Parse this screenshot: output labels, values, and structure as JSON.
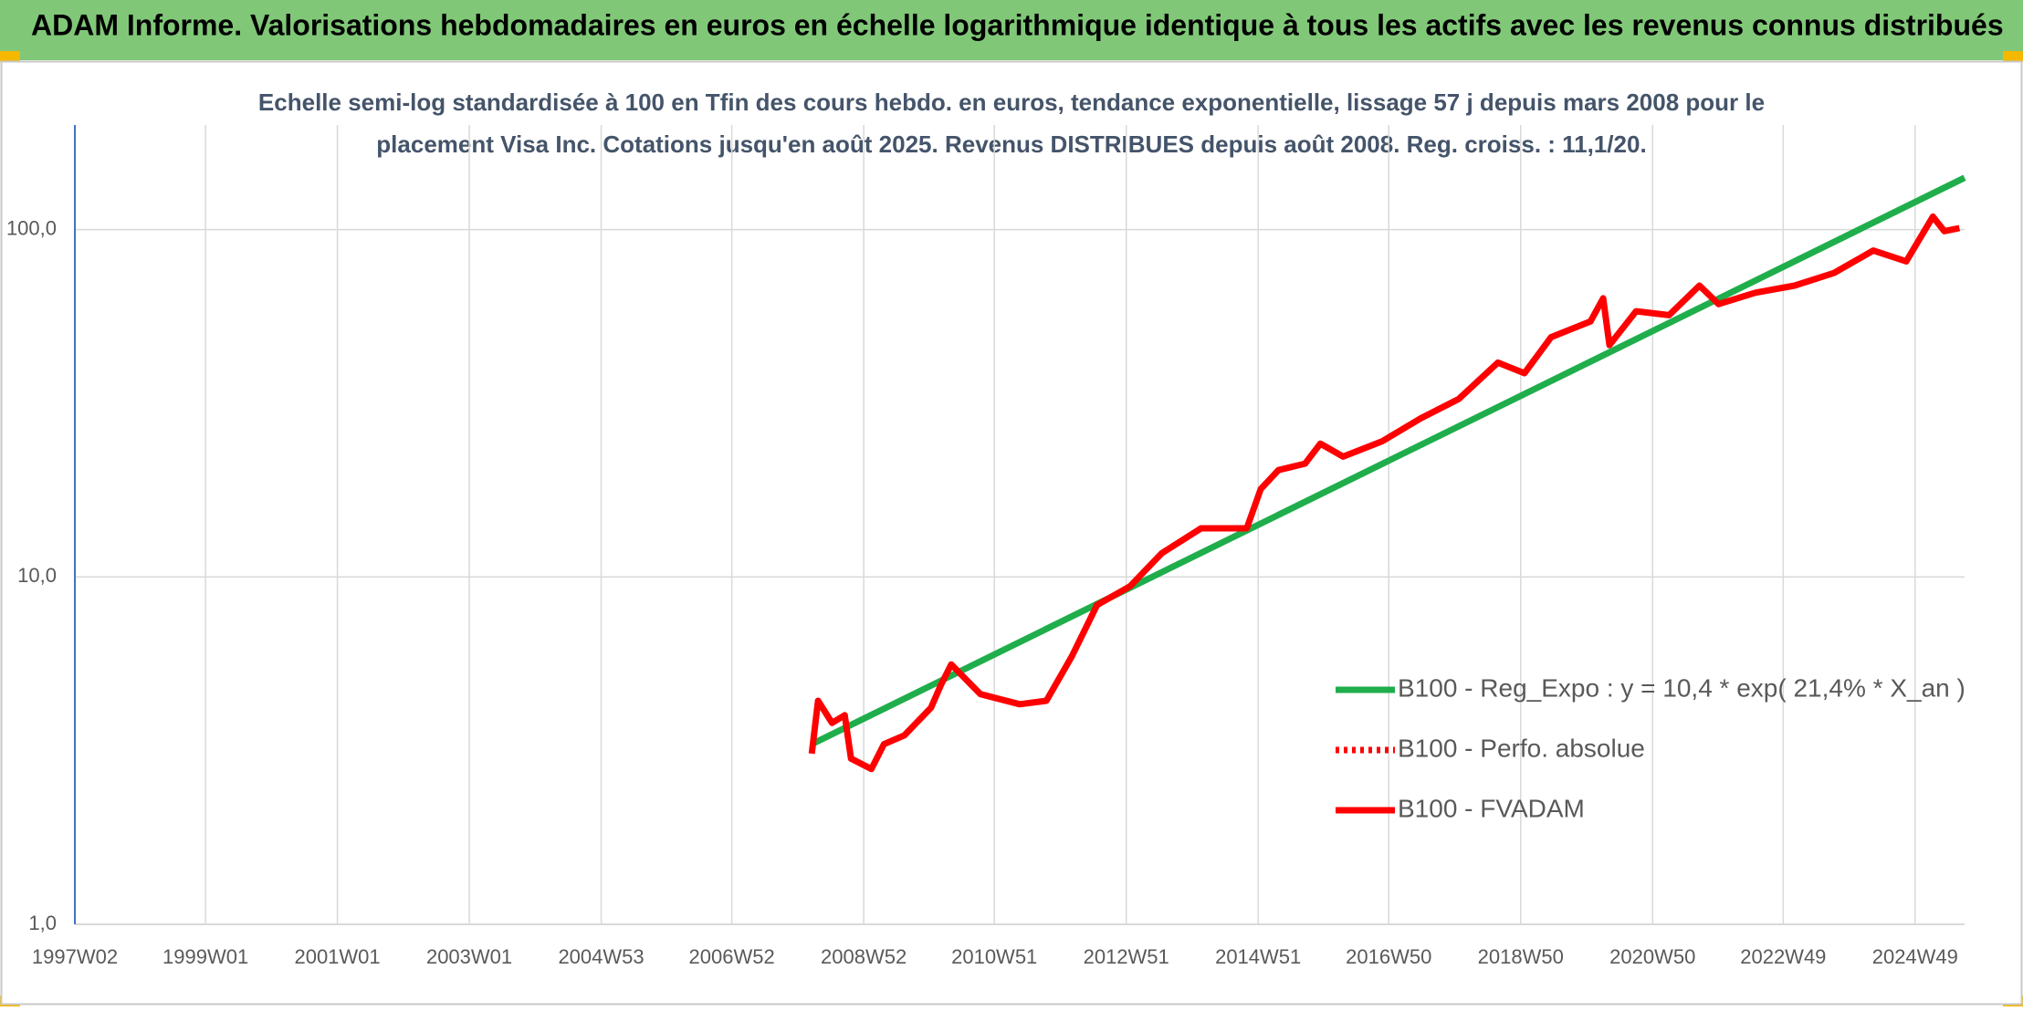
{
  "chart_data": {
    "type": "line",
    "title": "ADAM Informe. Valorisations hebdomadaires en euros en échelle logarithmique identique à tous les actifs avec les revenus connus distribués",
    "subtitle": [
      "Echelle semi-log standardisée à 100 en Tfin des cours hebdo. en euros, tendance exponentielle, lissage 57 j depuis mars 2008 pour le",
      "placement Visa Inc. Cotations jusqu'en août 2025. Revenus DISTRIBUES depuis août 2008. Reg. croiss. : 11,1/20."
    ],
    "xlim": [
      "1997W02",
      "2025W36"
    ],
    "xticks": [
      "1997W02",
      "1999W01",
      "2001W01",
      "2003W01",
      "2004W53",
      "2006W52",
      "2008W52",
      "2010W51",
      "2012W51",
      "2014W51",
      "2016W50",
      "2018W50",
      "2020W50",
      "2022W49",
      "2024W49"
    ],
    "ylim": [
      1,
      200
    ],
    "yticks": [
      {
        "value": 1,
        "label": "1,0"
      },
      {
        "value": 10,
        "label": "10,0"
      },
      {
        "value": 100,
        "label": "100,0"
      }
    ],
    "log_scale": true,
    "grid": true,
    "legend": "lower right",
    "series": [
      {
        "name": "B100 - Reg_Expo : y = 10,4 * exp( 21,4% *  X_an )",
        "color": "#1fae4b",
        "style": "solid",
        "x": [
          "2008W11",
          "2025W36"
        ],
        "values": [
          3.3,
          141
        ]
      },
      {
        "name": "B100 - Perfo. absolue",
        "color": "#ff0000",
        "style": "dotted",
        "x": [],
        "values": []
      },
      {
        "name": "B100 - FVADAM",
        "color": "#ff0000",
        "style": "solid",
        "x": [
          "2008W11",
          "2008W16",
          "2008W27",
          "2008W37",
          "2008W42",
          "2009W06",
          "2009W16",
          "2009W32",
          "2010W01",
          "2010W09",
          "2010W17",
          "2010W40",
          "2011W19",
          "2011W40",
          "2012W08",
          "2012W28",
          "2013W02",
          "2013W27",
          "2014W06",
          "2014W42",
          "2015W01",
          "2015W15",
          "2015W36",
          "2015W48",
          "2016W14",
          "2016W45",
          "2017W23",
          "2018W01",
          "2018W32",
          "2019W01",
          "2019W22",
          "2020W01",
          "2020W11",
          "2020W16",
          "2020W37",
          "2021W11",
          "2021W35",
          "2021W50",
          "2022W27",
          "2023W06",
          "2023W37",
          "2024W16",
          "2024W42",
          "2025W11",
          "2025W20",
          "2025W32"
        ],
        "values": [
          3.1,
          4.4,
          3.8,
          4.0,
          3.0,
          2.8,
          3.3,
          3.5,
          4.2,
          4.9,
          5.6,
          4.6,
          4.3,
          4.4,
          5.9,
          8.3,
          9.4,
          11.7,
          13.8,
          13.8,
          17.9,
          20.3,
          21.2,
          24.2,
          22.2,
          24.6,
          28.6,
          32.5,
          41.4,
          38.6,
          49.0,
          54.4,
          63.4,
          46.5,
          58.2,
          56.7,
          69,
          61,
          65.8,
          69,
          75,
          87,
          81,
          109,
          99,
          101
        ]
      }
    ]
  }
}
